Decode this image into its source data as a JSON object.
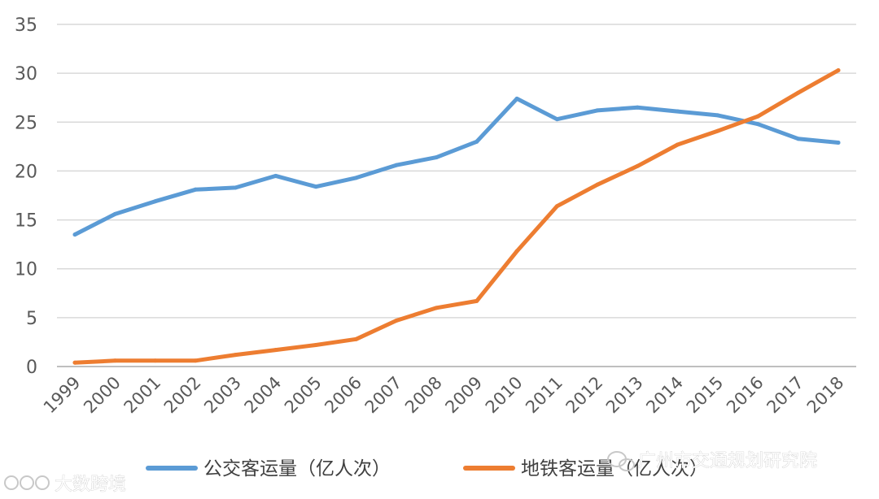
{
  "chart_data": {
    "type": "line",
    "title": "",
    "xlabel": "",
    "ylabel": "",
    "categories": [
      "1999",
      "2000",
      "2001",
      "2002",
      "2003",
      "2004",
      "2005",
      "2006",
      "2007",
      "2008",
      "2009",
      "2010",
      "2011",
      "2012",
      "2013",
      "2014",
      "2015",
      "2016",
      "2017",
      "2018"
    ],
    "ylim": [
      0,
      35
    ],
    "yticks": [
      0,
      5,
      10,
      15,
      20,
      25,
      30,
      35
    ],
    "grid": true,
    "legend_position": "bottom",
    "series": [
      {
        "name": "公交客运量（亿人次）",
        "color": "#5b9bd5",
        "values": [
          13.5,
          15.6,
          16.9,
          18.1,
          18.3,
          19.5,
          18.4,
          19.3,
          20.6,
          21.4,
          23.0,
          27.4,
          25.3,
          26.2,
          26.5,
          26.1,
          25.7,
          24.8,
          23.3,
          22.9
        ]
      },
      {
        "name": "地铁客运量（亿人次）",
        "color": "#ed7d31",
        "values": [
          0.4,
          0.6,
          0.6,
          0.6,
          1.2,
          1.7,
          2.2,
          2.8,
          4.7,
          6.0,
          6.7,
          11.8,
          16.4,
          18.6,
          20.5,
          22.7,
          24.1,
          25.6,
          28.0,
          30.3
        ]
      }
    ]
  },
  "watermarks": {
    "left": "大数跨境",
    "right": "广州市交通规划研究院"
  }
}
